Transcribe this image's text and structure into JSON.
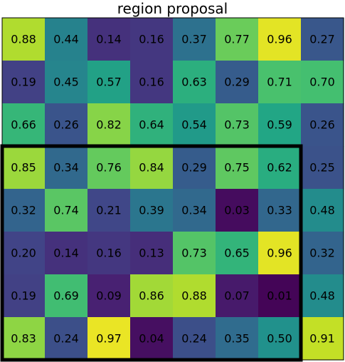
{
  "chart_data": {
    "type": "heatmap",
    "title": "region proposal",
    "colormap": "viridis",
    "value_range": [
      0,
      1
    ],
    "rows": [
      [
        0.88,
        0.44,
        0.14,
        0.16,
        0.37,
        0.77,
        0.96,
        0.27
      ],
      [
        0.19,
        0.45,
        0.57,
        0.16,
        0.63,
        0.29,
        0.71,
        0.7
      ],
      [
        0.66,
        0.26,
        0.82,
        0.64,
        0.54,
        0.73,
        0.59,
        0.26
      ],
      [
        0.85,
        0.34,
        0.76,
        0.84,
        0.29,
        0.75,
        0.62,
        0.25
      ],
      [
        0.32,
        0.74,
        0.21,
        0.39,
        0.34,
        0.03,
        0.33,
        0.48
      ],
      [
        0.2,
        0.14,
        0.16,
        0.13,
        0.73,
        0.65,
        0.96,
        0.32
      ],
      [
        0.19,
        0.69,
        0.09,
        0.86,
        0.88,
        0.07,
        0.01,
        0.48
      ],
      [
        0.83,
        0.24,
        0.97,
        0.04,
        0.24,
        0.35,
        0.5,
        0.91
      ]
    ],
    "labels": [
      [
        "0.88",
        "0.44",
        "0.14",
        "0.16",
        "0.37",
        "0.77",
        "0.96",
        "0.27"
      ],
      [
        "0.19",
        "0.45",
        "0.57",
        "0.16",
        "0.63",
        "0.29",
        "0.71",
        "0.70"
      ],
      [
        "0.66",
        "0.26",
        "0.82",
        "0.64",
        "0.54",
        "0.73",
        "0.59",
        "0.26"
      ],
      [
        "0.85",
        "0.34",
        "0.76",
        "0.84",
        "0.29",
        "0.75",
        "0.62",
        "0.25"
      ],
      [
        "0.32",
        "0.74",
        "0.21",
        "0.39",
        "0.34",
        "0.03",
        "0.33",
        "0.48"
      ],
      [
        "0.20",
        "0.14",
        "0.16",
        "0.13",
        "0.73",
        "0.65",
        "0.96",
        "0.32"
      ],
      [
        "0.19",
        "0.69",
        "0.09",
        "0.86",
        "0.88",
        "0.07",
        "0.01",
        "0.48"
      ],
      [
        "0.83",
        "0.24",
        "0.97",
        "0.04",
        "0.24",
        "0.35",
        "0.50",
        "0.91"
      ]
    ],
    "proposal_region": {
      "row_start": 3,
      "row_end": 7,
      "col_start": 0,
      "col_end": 6
    },
    "region_border_color": "#000000",
    "text_color": "#000000",
    "grid": false
  }
}
